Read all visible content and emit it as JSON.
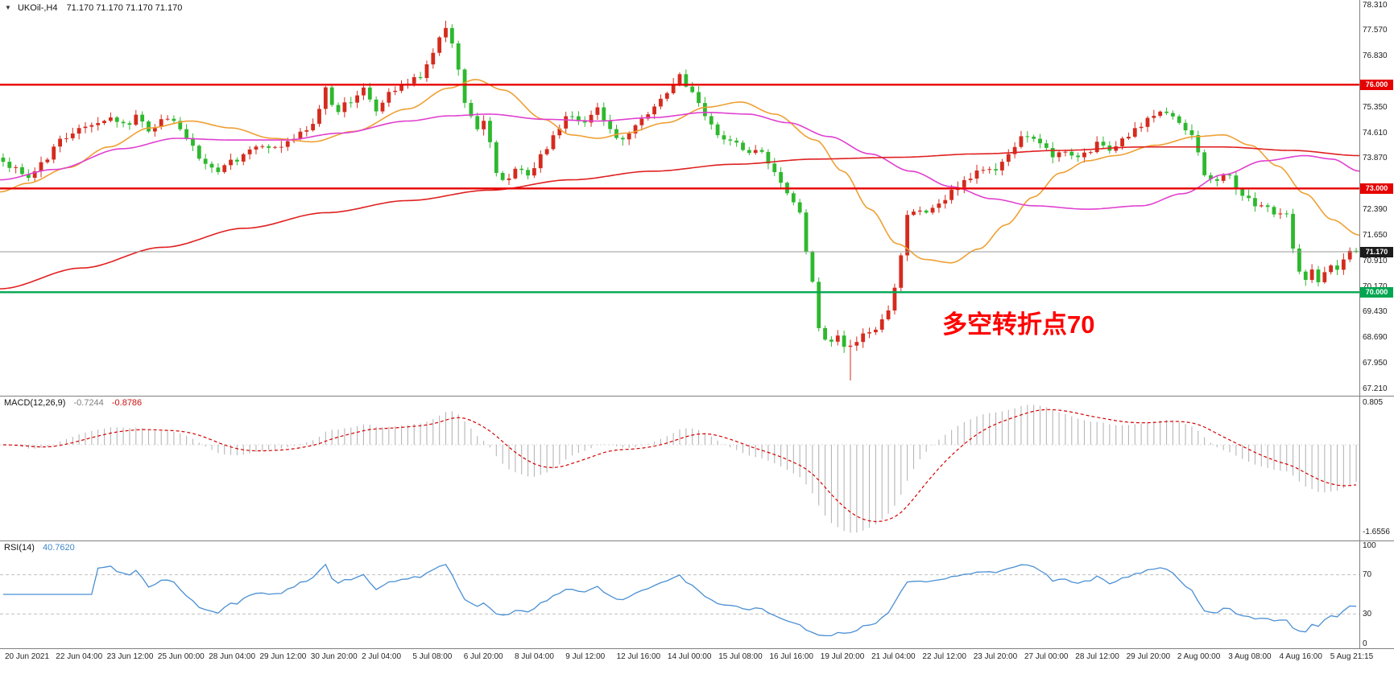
{
  "app": {
    "symbol_header": {
      "dropdown_icon": "▼",
      "symbol": "UKOil-,H4",
      "quotes": "71.170 71.170 71.170 71.170"
    }
  },
  "annotation": {
    "text": "多空转折点70",
    "color": "#ff0000"
  },
  "price_axis": {
    "ticks": [
      {
        "label": "78.310",
        "value": 78.31
      },
      {
        "label": "77.570",
        "value": 77.57
      },
      {
        "label": "76.830",
        "value": 76.83
      },
      {
        "label": "75.350",
        "value": 75.35
      },
      {
        "label": "74.610",
        "value": 74.61
      },
      {
        "label": "73.870",
        "value": 73.87
      },
      {
        "label": "72.390",
        "value": 72.39
      },
      {
        "label": "71.650",
        "value": 71.65
      },
      {
        "label": "70.910",
        "value": 70.91
      },
      {
        "label": "70.170",
        "value": 70.17
      },
      {
        "label": "69.430",
        "value": 69.43
      },
      {
        "label": "68.690",
        "value": 68.69
      },
      {
        "label": "67.950",
        "value": 67.95
      },
      {
        "label": "67.210",
        "value": 67.21
      }
    ]
  },
  "hlines": [
    {
      "label": "76.000",
      "value": 76.0,
      "color": "#e60000"
    },
    {
      "label": "73.000",
      "value": 73.0,
      "color": "#e60000"
    },
    {
      "label": "70.000",
      "value": 70.0,
      "color": "#00a651"
    }
  ],
  "current_price": {
    "label": "71.170",
    "value": 71.17,
    "line_color": "#9a9a9a",
    "badge_bg": "#1c1c1c"
  },
  "indicators": {
    "macd": {
      "label": "MACD(12,26,9)",
      "fast": 12,
      "slow": 26,
      "signal": 9,
      "value_main": "-0.7244",
      "value_signal": "-0.8786",
      "axis_labels": [
        {
          "label": "0.805",
          "value": 0.805
        },
        {
          "label": "-1.6556",
          "value": -1.6556
        }
      ],
      "histogram_color": "#b6b6b6",
      "signal_color": "#d40000"
    },
    "rsi": {
      "label": "RSI(14)",
      "period": 14,
      "value": "40.7620",
      "levels": [
        70,
        30
      ],
      "axis_labels": [
        {
          "label": "100",
          "value": 100
        },
        {
          "label": "70",
          "value": 70
        },
        {
          "label": "30",
          "value": 30
        },
        {
          "label": "0",
          "value": 0
        }
      ],
      "line_color": "#4a8fd3",
      "level_color": "#c0c0c0"
    }
  },
  "time_axis": {
    "labels": [
      "20 Jun 2021",
      "22 Jun 04:00",
      "23 Jun 12:00",
      "25 Jun 00:00",
      "28 Jun 04:00",
      "29 Jun 12:00",
      "30 Jun 20:00",
      "2 Jul 04:00",
      "5 Jul 08:00",
      "6 Jul 20:00",
      "8 Jul 04:00",
      "9 Jul 12:00",
      "12 Jul 16:00",
      "14 Jul 00:00",
      "15 Jul 08:00",
      "16 Jul 16:00",
      "19 Jul 20:00",
      "21 Jul 04:00",
      "22 Jul 12:00",
      "23 Jul 20:00",
      "27 Jul 00:00",
      "28 Jul 12:00",
      "29 Jul 20:00",
      "2 Aug 00:00",
      "3 Aug 08:00",
      "4 Aug 16:00",
      "5 Aug 21:15"
    ]
  },
  "chart_data": {
    "type": "candlestick",
    "symbol": "UKOil-",
    "timeframe": "H4",
    "title": "UKOil-,H4",
    "price_range": [
      67.21,
      78.31
    ],
    "y_tick_step": 0.74,
    "grid": false,
    "candle_count": 215,
    "seed": 7,
    "up_color": "#d42b1e",
    "down_color": "#2eb82e",
    "last_close": 71.17,
    "price_path_keypoints": [
      [
        0.0,
        73.85
      ],
      [
        0.008,
        73.55
      ],
      [
        0.018,
        73.3
      ],
      [
        0.03,
        73.8
      ],
      [
        0.042,
        74.4
      ],
      [
        0.055,
        74.7
      ],
      [
        0.068,
        74.9
      ],
      [
        0.08,
        75.05
      ],
      [
        0.09,
        74.8
      ],
      [
        0.1,
        75.1
      ],
      [
        0.108,
        74.7
      ],
      [
        0.118,
        75.05
      ],
      [
        0.128,
        74.9
      ],
      [
        0.138,
        74.3
      ],
      [
        0.148,
        73.7
      ],
      [
        0.158,
        73.45
      ],
      [
        0.17,
        73.8
      ],
      [
        0.182,
        74.15
      ],
      [
        0.192,
        74.3
      ],
      [
        0.202,
        74.15
      ],
      [
        0.212,
        74.4
      ],
      [
        0.222,
        74.6
      ],
      [
        0.23,
        74.85
      ],
      [
        0.238,
        75.95
      ],
      [
        0.246,
        75.25
      ],
      [
        0.256,
        75.5
      ],
      [
        0.266,
        75.9
      ],
      [
        0.276,
        75.3
      ],
      [
        0.288,
        75.8
      ],
      [
        0.298,
        76.0
      ],
      [
        0.308,
        76.25
      ],
      [
        0.318,
        76.9
      ],
      [
        0.326,
        77.6
      ],
      [
        0.333,
        77.1
      ],
      [
        0.341,
        75.4
      ],
      [
        0.35,
        74.7
      ],
      [
        0.357,
        74.95
      ],
      [
        0.364,
        73.45
      ],
      [
        0.372,
        73.2
      ],
      [
        0.38,
        73.6
      ],
      [
        0.388,
        73.3
      ],
      [
        0.398,
        73.95
      ],
      [
        0.408,
        74.55
      ],
      [
        0.418,
        75.15
      ],
      [
        0.428,
        74.95
      ],
      [
        0.438,
        75.3
      ],
      [
        0.448,
        74.7
      ],
      [
        0.458,
        74.4
      ],
      [
        0.468,
        74.8
      ],
      [
        0.478,
        75.2
      ],
      [
        0.49,
        75.7
      ],
      [
        0.5,
        76.25
      ],
      [
        0.51,
        75.7
      ],
      [
        0.52,
        75.05
      ],
      [
        0.53,
        74.5
      ],
      [
        0.54,
        74.3
      ],
      [
        0.55,
        74.0
      ],
      [
        0.56,
        74.05
      ],
      [
        0.57,
        73.4
      ],
      [
        0.58,
        72.9
      ],
      [
        0.588,
        72.3
      ],
      [
        0.596,
        70.75
      ],
      [
        0.603,
        68.95
      ],
      [
        0.61,
        68.5
      ],
      [
        0.617,
        68.8
      ],
      [
        0.623,
        68.4
      ],
      [
        0.63,
        68.55
      ],
      [
        0.637,
        68.9
      ],
      [
        0.644,
        68.95
      ],
      [
        0.65,
        69.3
      ],
      [
        0.656,
        69.6
      ],
      [
        0.662,
        70.6
      ],
      [
        0.667,
        72.3
      ],
      [
        0.675,
        72.4
      ],
      [
        0.683,
        72.3
      ],
      [
        0.693,
        72.6
      ],
      [
        0.703,
        72.95
      ],
      [
        0.713,
        73.25
      ],
      [
        0.723,
        73.55
      ],
      [
        0.733,
        73.55
      ],
      [
        0.743,
        73.95
      ],
      [
        0.752,
        74.55
      ],
      [
        0.76,
        74.4
      ],
      [
        0.77,
        74.2
      ],
      [
        0.777,
        73.9
      ],
      [
        0.785,
        74.1
      ],
      [
        0.793,
        73.9
      ],
      [
        0.801,
        74.0
      ],
      [
        0.81,
        74.3
      ],
      [
        0.818,
        74.1
      ],
      [
        0.828,
        74.45
      ],
      [
        0.838,
        74.7
      ],
      [
        0.848,
        75.0
      ],
      [
        0.857,
        75.25
      ],
      [
        0.865,
        75.05
      ],
      [
        0.872,
        74.7
      ],
      [
        0.88,
        74.5
      ],
      [
        0.888,
        73.35
      ],
      [
        0.898,
        73.2
      ],
      [
        0.905,
        73.45
      ],
      [
        0.912,
        73.0
      ],
      [
        0.92,
        72.7
      ],
      [
        0.927,
        72.4
      ],
      [
        0.934,
        72.5
      ],
      [
        0.941,
        72.25
      ],
      [
        0.947,
        72.45
      ],
      [
        0.953,
        71.2
      ],
      [
        0.958,
        70.55
      ],
      [
        0.963,
        70.3
      ],
      [
        0.968,
        70.6
      ],
      [
        0.973,
        70.3
      ],
      [
        0.978,
        70.55
      ],
      [
        0.983,
        70.9
      ],
      [
        0.988,
        70.5
      ],
      [
        0.993,
        71.35
      ],
      [
        0.997,
        71.05
      ],
      [
        1.0,
        71.17
      ]
    ],
    "forced_extremes": [
      {
        "f": 0.326,
        "high": 77.85
      },
      {
        "f": 0.625,
        "low": 67.45
      }
    ],
    "ma_lines": [
      {
        "name": "ma-fast",
        "color": "#efa033",
        "points": [
          [
            0,
            72.9
          ],
          [
            0.02,
            73.15
          ],
          [
            0.05,
            73.6
          ],
          [
            0.08,
            74.2
          ],
          [
            0.11,
            74.75
          ],
          [
            0.14,
            74.95
          ],
          [
            0.17,
            74.75
          ],
          [
            0.2,
            74.45
          ],
          [
            0.23,
            74.35
          ],
          [
            0.26,
            74.65
          ],
          [
            0.3,
            75.3
          ],
          [
            0.33,
            75.9
          ],
          [
            0.35,
            76.15
          ],
          [
            0.37,
            75.85
          ],
          [
            0.4,
            75.0
          ],
          [
            0.42,
            74.55
          ],
          [
            0.44,
            74.45
          ],
          [
            0.46,
            74.6
          ],
          [
            0.49,
            74.9
          ],
          [
            0.52,
            75.35
          ],
          [
            0.545,
            75.5
          ],
          [
            0.57,
            75.15
          ],
          [
            0.6,
            74.4
          ],
          [
            0.62,
            73.5
          ],
          [
            0.64,
            72.4
          ],
          [
            0.66,
            71.4
          ],
          [
            0.68,
            70.95
          ],
          [
            0.7,
            70.85
          ],
          [
            0.72,
            71.25
          ],
          [
            0.74,
            71.95
          ],
          [
            0.76,
            72.75
          ],
          [
            0.78,
            73.45
          ],
          [
            0.8,
            73.8
          ],
          [
            0.82,
            73.95
          ],
          [
            0.85,
            74.25
          ],
          [
            0.88,
            74.5
          ],
          [
            0.9,
            74.55
          ],
          [
            0.92,
            74.25
          ],
          [
            0.94,
            73.65
          ],
          [
            0.96,
            72.85
          ],
          [
            0.98,
            72.1
          ],
          [
            1.0,
            71.65
          ]
        ]
      },
      {
        "name": "ma-mid",
        "color": "#e040d0",
        "points": [
          [
            0,
            73.25
          ],
          [
            0.04,
            73.55
          ],
          [
            0.09,
            74.15
          ],
          [
            0.13,
            74.45
          ],
          [
            0.17,
            74.4
          ],
          [
            0.21,
            74.4
          ],
          [
            0.25,
            74.6
          ],
          [
            0.3,
            74.95
          ],
          [
            0.33,
            75.1
          ],
          [
            0.36,
            75.15
          ],
          [
            0.4,
            75.0
          ],
          [
            0.44,
            74.95
          ],
          [
            0.48,
            75.05
          ],
          [
            0.52,
            75.2
          ],
          [
            0.55,
            75.15
          ],
          [
            0.58,
            74.9
          ],
          [
            0.61,
            74.5
          ],
          [
            0.64,
            74.0
          ],
          [
            0.67,
            73.5
          ],
          [
            0.7,
            73.05
          ],
          [
            0.73,
            72.7
          ],
          [
            0.76,
            72.5
          ],
          [
            0.8,
            72.4
          ],
          [
            0.84,
            72.5
          ],
          [
            0.87,
            72.85
          ],
          [
            0.9,
            73.4
          ],
          [
            0.93,
            73.8
          ],
          [
            0.96,
            73.95
          ],
          [
            0.98,
            73.85
          ],
          [
            1.0,
            73.5
          ]
        ]
      },
      {
        "name": "ma-slow",
        "color": "#e02020",
        "points": [
          [
            0,
            70.1
          ],
          [
            0.06,
            70.7
          ],
          [
            0.12,
            71.3
          ],
          [
            0.18,
            71.85
          ],
          [
            0.24,
            72.3
          ],
          [
            0.3,
            72.65
          ],
          [
            0.36,
            72.95
          ],
          [
            0.42,
            73.25
          ],
          [
            0.48,
            73.5
          ],
          [
            0.54,
            73.7
          ],
          [
            0.6,
            73.85
          ],
          [
            0.66,
            73.9
          ],
          [
            0.72,
            74.0
          ],
          [
            0.78,
            74.1
          ],
          [
            0.84,
            74.2
          ],
          [
            0.9,
            74.2
          ],
          [
            0.95,
            74.1
          ],
          [
            1.0,
            73.95
          ]
        ]
      }
    ]
  }
}
